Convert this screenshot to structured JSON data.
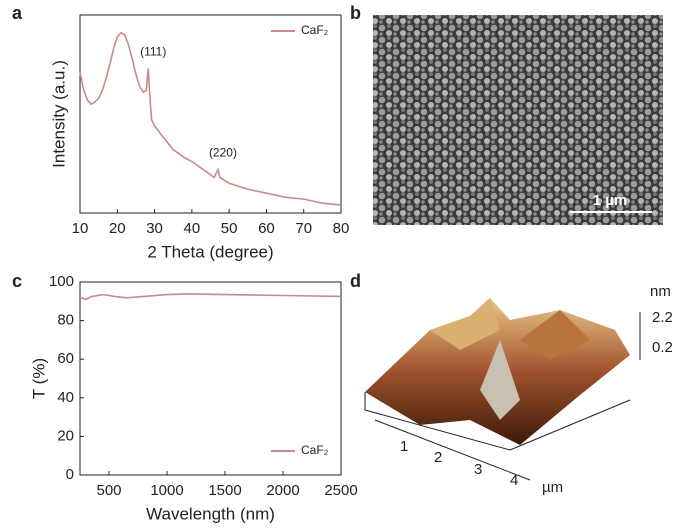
{
  "panel_labels": [
    "a",
    "b",
    "c",
    "d"
  ],
  "chart_data": [
    {
      "type": "line",
      "xlabel": "2 Theta (degree)",
      "ylabel": "Intensity (a.u.)",
      "xlim": [
        10,
        80
      ],
      "xticks": [
        10,
        20,
        30,
        40,
        50,
        60,
        70,
        80
      ],
      "ylim": [
        0,
        100
      ],
      "legend": "top-right",
      "annotations": [
        {
          "text": "(111)",
          "x": 28.3,
          "y": 73
        },
        {
          "text": "(220)",
          "x": 47,
          "y": 22
        }
      ],
      "series": [
        {
          "name": "CaF₂",
          "color": "#c98a8a",
          "x": [
            10,
            11,
            12,
            13,
            14,
            15,
            16,
            17,
            18,
            19,
            20,
            21,
            22,
            23,
            24,
            25,
            26,
            27,
            27.8,
            28.3,
            28.7,
            29.2,
            30,
            32,
            35,
            38,
            40,
            43,
            46,
            46.5,
            47,
            47.5,
            50,
            55,
            60,
            65,
            70,
            75,
            80
          ],
          "values": [
            71,
            62,
            57,
            55,
            56,
            58,
            62,
            68,
            75,
            83,
            89,
            91,
            90,
            85,
            78,
            70,
            64,
            61,
            62,
            73,
            60,
            47,
            44,
            39,
            32,
            28,
            26,
            22,
            18,
            20,
            22,
            18,
            15,
            12,
            10,
            8,
            7,
            5,
            4
          ]
        }
      ]
    },
    {
      "type": "line",
      "xlabel": "Wavelength (nm)",
      "ylabel": "T (%)",
      "xlim": [
        250,
        2500
      ],
      "xticks": [
        500,
        1000,
        1500,
        2000,
        2500
      ],
      "ylim": [
        0,
        100
      ],
      "yticks": [
        0,
        20,
        40,
        60,
        80,
        100
      ],
      "legend": "bottom-right",
      "series": [
        {
          "name": "CaF₂",
          "color": "#c98a8a",
          "x": [
            250,
            300,
            350,
            450,
            550,
            650,
            800,
            1000,
            1200,
            1500,
            2000,
            2500
          ],
          "values": [
            92,
            91,
            92.5,
            93.5,
            92.5,
            91.8,
            92.5,
            93.5,
            93.8,
            93.5,
            93,
            92.5
          ]
        }
      ]
    }
  ],
  "sem": {
    "scale_bar": "1 µm"
  },
  "afm": {
    "z_unit": "nm",
    "z_ticks": [
      "2.2",
      "0.2"
    ],
    "x_unit": "µm",
    "x_ticks": [
      "1",
      "2",
      "3",
      "4"
    ]
  }
}
